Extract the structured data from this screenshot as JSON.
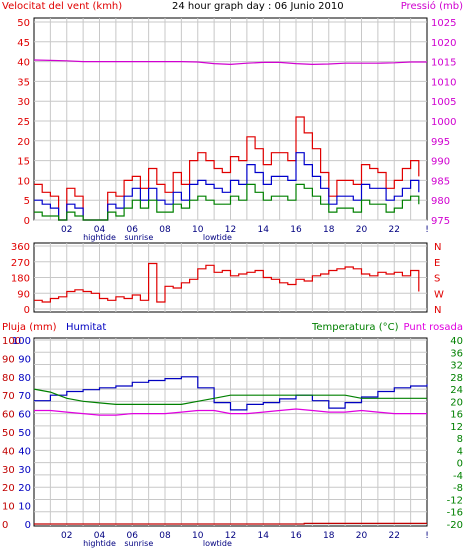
{
  "header": {
    "wind_title": "Velocitat del vent (kmh)",
    "graph_title": "24 hour graph day : 06 Junio 2010",
    "pressure_title": "Pressió (mb)",
    "rain_title": "Pluja (mm)",
    "humidity_title": "Humitat",
    "temp_title": "Temperatura (°C)",
    "dew_title": "Punt rosada"
  },
  "x_tick_labels": [
    "02",
    "04",
    "06",
    "08",
    "10",
    "12",
    "14",
    "16",
    "18",
    "20",
    "22",
    "!"
  ],
  "event_labels": [
    {
      "label": "hightide",
      "hour": 4.0
    },
    {
      "label": "sunrise",
      "hour": 6.4
    },
    {
      "label": "lowtide",
      "hour": 11.2
    }
  ],
  "colors": {
    "wind_gust": "#e00000",
    "wind_avg": "#0000cc",
    "wind_low": "#008000",
    "pressure": "#d000d0",
    "direction": "#e00000",
    "humidity": "#0000c0",
    "temperature": "#008000",
    "dew_point": "#e000e0",
    "rain": "#c00000",
    "grid": "#c8c8c8"
  },
  "chart_data": [
    {
      "type": "line",
      "title": "24 hour graph day : 06 Junio 2010",
      "left_axis": {
        "label": "Velocitat del vent (kmh)",
        "range": [
          0,
          50
        ],
        "ticks": [
          "0",
          "5",
          "10",
          "15",
          "20",
          "25",
          "30",
          "35",
          "40",
          "45",
          "50"
        ]
      },
      "right_axis": {
        "label": "Pressió (mb)",
        "range": [
          975,
          1025
        ],
        "ticks": [
          "975",
          "980",
          "985",
          "990",
          "995",
          "1000",
          "1005",
          "1010",
          "1015",
          "1020",
          "1025"
        ]
      },
      "x_range_hours": [
        0,
        24
      ],
      "grid": true,
      "series": [
        {
          "name": "gust",
          "axis": "left",
          "x": [
            0,
            0.5,
            1,
            1.5,
            2,
            2.5,
            3,
            3.5,
            4,
            4.5,
            5,
            5.5,
            6,
            6.5,
            7,
            7.5,
            8,
            8.5,
            9,
            9.5,
            10,
            10.5,
            11,
            11.5,
            12,
            12.5,
            13,
            13.5,
            14,
            14.5,
            15,
            15.5,
            16,
            16.5,
            17,
            17.5,
            18,
            18.5,
            19,
            19.5,
            20,
            20.5,
            21,
            21.5,
            22,
            22.5,
            23,
            23.5
          ],
          "values": [
            9,
            7,
            6,
            0,
            8,
            6,
            0,
            0,
            0,
            7,
            6,
            10,
            11,
            8,
            13,
            9,
            7,
            12,
            9,
            15,
            17,
            15,
            13,
            12,
            16,
            15,
            21,
            18,
            14,
            17,
            17,
            15,
            26,
            22,
            18,
            12,
            6,
            10,
            10,
            9,
            14,
            13,
            12,
            8,
            10,
            13,
            15,
            11
          ]
        },
        {
          "name": "avg",
          "axis": "left",
          "x": [
            0,
            0.5,
            1,
            1.5,
            2,
            2.5,
            3,
            3.5,
            4,
            4.5,
            5,
            5.5,
            6,
            6.5,
            7,
            7.5,
            8,
            8.5,
            9,
            9.5,
            10,
            10.5,
            11,
            11.5,
            12,
            12.5,
            13,
            13.5,
            14,
            14.5,
            15,
            15.5,
            16,
            16.5,
            17,
            17.5,
            18,
            18.5,
            19,
            19.5,
            20,
            20.5,
            21,
            21.5,
            22,
            22.5,
            23,
            23.5
          ],
          "values": [
            5,
            4,
            3,
            0,
            4,
            3,
            0,
            0,
            0,
            4,
            3,
            6,
            8,
            5,
            8,
            5,
            4,
            7,
            5,
            9,
            10,
            9,
            8,
            7,
            10,
            9,
            14,
            12,
            9,
            11,
            11,
            10,
            17,
            14,
            11,
            8,
            4,
            6,
            6,
            5,
            9,
            8,
            8,
            5,
            6,
            8,
            10,
            7
          ]
        },
        {
          "name": "low",
          "axis": "left",
          "x": [
            0,
            0.5,
            1,
            1.5,
            2,
            2.5,
            3,
            3.5,
            4,
            4.5,
            5,
            5.5,
            6,
            6.5,
            7,
            7.5,
            8,
            8.5,
            9,
            9.5,
            10,
            10.5,
            11,
            11.5,
            12,
            12.5,
            13,
            13.5,
            14,
            14.5,
            15,
            15.5,
            16,
            16.5,
            17,
            17.5,
            18,
            18.5,
            19,
            19.5,
            20,
            20.5,
            21,
            21.5,
            22,
            22.5,
            23,
            23.5
          ],
          "values": [
            2,
            1,
            1,
            0,
            2,
            1,
            0,
            0,
            0,
            2,
            1,
            3,
            5,
            3,
            5,
            2,
            2,
            4,
            3,
            5,
            6,
            5,
            4,
            4,
            6,
            5,
            9,
            7,
            5,
            6,
            6,
            5,
            9,
            8,
            6,
            4,
            2,
            3,
            3,
            2,
            5,
            4,
            4,
            2,
            3,
            5,
            6,
            4
          ]
        },
        {
          "name": "pressure",
          "axis": "right",
          "x": [
            0,
            1,
            2,
            3,
            4,
            5,
            6,
            7,
            8,
            9,
            10,
            11,
            12,
            13,
            14,
            15,
            16,
            17,
            18,
            19,
            20,
            21,
            22,
            23,
            24
          ],
          "values": [
            1015.4,
            1015.3,
            1015.2,
            1015.0,
            1015.0,
            1015.0,
            1015.0,
            1015.0,
            1015.0,
            1015.0,
            1014.9,
            1014.5,
            1014.3,
            1014.6,
            1014.8,
            1014.8,
            1014.5,
            1014.3,
            1014.4,
            1014.6,
            1014.6,
            1014.6,
            1014.7,
            1014.9,
            1014.9
          ]
        }
      ]
    },
    {
      "type": "line",
      "left_axis": {
        "label": "",
        "range": [
          0,
          360
        ],
        "ticks": [
          "0",
          "90",
          "180",
          "270",
          "360"
        ]
      },
      "right_axis": {
        "label": "",
        "ticks": [
          "N",
          "E",
          "S",
          "W",
          "N"
        ]
      },
      "x_range_hours": [
        0,
        24
      ],
      "grid": true,
      "series": [
        {
          "name": "direction",
          "x": [
            0,
            0.5,
            1,
            1.5,
            2,
            2.5,
            3,
            3.5,
            4,
            4.5,
            5,
            5.5,
            6,
            6.5,
            7,
            7.5,
            8,
            8.5,
            9,
            9.5,
            10,
            10.5,
            11,
            11.5,
            12,
            12.5,
            13,
            13.5,
            14,
            14.5,
            15,
            15.5,
            16,
            16.5,
            17,
            17.5,
            18,
            18.5,
            19,
            19.5,
            20,
            20.5,
            21,
            21.5,
            22,
            22.5,
            23,
            23.5
          ],
          "values": [
            50,
            40,
            60,
            70,
            100,
            110,
            100,
            90,
            60,
            50,
            70,
            60,
            80,
            50,
            260,
            40,
            130,
            120,
            150,
            170,
            230,
            250,
            210,
            220,
            190,
            200,
            210,
            220,
            180,
            170,
            150,
            140,
            170,
            160,
            190,
            200,
            220,
            230,
            240,
            230,
            200,
            190,
            210,
            200,
            210,
            190,
            220,
            100
          ]
        }
      ]
    },
    {
      "type": "line",
      "left_axis_outer": {
        "label": "Pluja (mm)",
        "ticks": [
          "0",
          "10",
          "20",
          "30",
          "40",
          "50",
          "60",
          "70",
          "80",
          "90",
          "100"
        ]
      },
      "left_axis_inner": {
        "label": "Humitat",
        "ticks": [
          "0",
          "10",
          "20",
          "30",
          "40",
          "50",
          "60",
          "70",
          "80",
          "90",
          "100"
        ]
      },
      "right_axis": {
        "label": "Temperatura (°C)",
        "range": [
          -20,
          40
        ],
        "ticks": [
          "-20",
          "-16",
          "-12",
          "-8",
          "-4",
          "0",
          "4",
          "8",
          "12",
          "16",
          "20",
          "24",
          "28",
          "32",
          "36",
          "40"
        ]
      },
      "x_range_hours": [
        0,
        24
      ],
      "grid": true,
      "series": [
        {
          "name": "humidity",
          "axis": "inner",
          "x": [
            0,
            1,
            2,
            3,
            4,
            5,
            6,
            7,
            8,
            9,
            10,
            11,
            12,
            13,
            14,
            15,
            16,
            17,
            18,
            19,
            20,
            21,
            22,
            23,
            24
          ],
          "values": [
            67,
            70,
            72,
            73,
            74,
            75,
            77,
            78,
            79,
            80,
            74,
            66,
            62,
            65,
            66,
            68,
            70,
            67,
            63,
            66,
            69,
            72,
            74,
            75,
            76
          ]
        },
        {
          "name": "temperature",
          "axis": "right",
          "x": [
            0,
            1,
            2,
            3,
            4,
            5,
            6,
            7,
            8,
            9,
            10,
            11,
            12,
            13,
            14,
            15,
            16,
            17,
            18,
            19,
            20,
            21,
            22,
            23,
            24
          ],
          "values": [
            24,
            23,
            21,
            20,
            19.5,
            19,
            19,
            19,
            19,
            19,
            20,
            21,
            22,
            22,
            22,
            22,
            22,
            22,
            22,
            22,
            21,
            21,
            21,
            21,
            21
          ]
        },
        {
          "name": "dew_point",
          "axis": "right",
          "x": [
            0,
            1,
            2,
            3,
            4,
            5,
            6,
            7,
            8,
            9,
            10,
            11,
            12,
            13,
            14,
            15,
            16,
            17,
            18,
            19,
            20,
            21,
            22,
            23,
            24
          ],
          "values": [
            17,
            17,
            16.5,
            16,
            15.5,
            15.5,
            16,
            16,
            16,
            16.5,
            17,
            17,
            16,
            16,
            16.5,
            17,
            17.5,
            17,
            16.5,
            16.5,
            17,
            16.5,
            16,
            16,
            16
          ]
        },
        {
          "name": "rain",
          "axis": "outer",
          "x": [
            0,
            12,
            16.5,
            24
          ],
          "values": [
            0,
            0,
            0.3,
            0.3
          ]
        }
      ]
    }
  ]
}
